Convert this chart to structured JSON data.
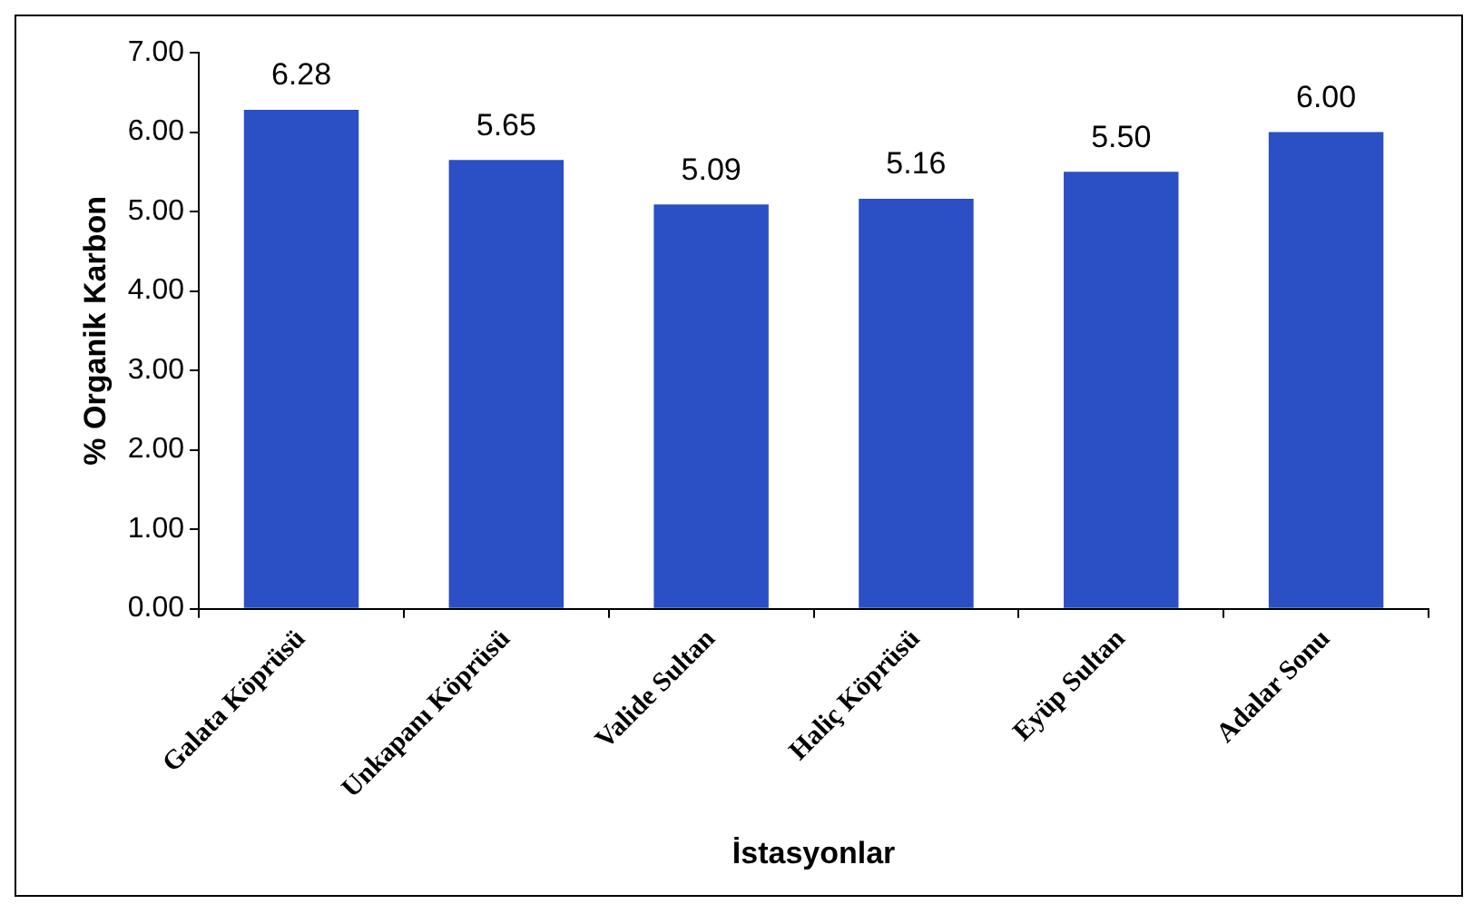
{
  "chart_data": {
    "type": "bar",
    "xlabel": "İstasyonlar",
    "ylabel": "% Organik Karbon",
    "categories": [
      "Galata Köprüsü",
      "Unkapanı Köprüsü",
      "Valide Sultan",
      "Haliç Köprüsü",
      "Eyüp Sultan",
      "Adalar Sonu"
    ],
    "values": [
      6.28,
      5.65,
      5.09,
      5.16,
      5.5,
      6.0
    ],
    "value_labels": [
      "6.28",
      "5.65",
      "5.09",
      "5.16",
      "5.50",
      "6.00"
    ],
    "color": "#2b4fc4",
    "ylim": [
      0,
      7
    ],
    "yticks": [
      {
        "value": 0,
        "label": "0.00"
      },
      {
        "value": 1,
        "label": "1.00"
      },
      {
        "value": 2,
        "label": "2.00"
      },
      {
        "value": 3,
        "label": "3.00"
      },
      {
        "value": 4,
        "label": "4.00"
      },
      {
        "value": 5,
        "label": "5.00"
      },
      {
        "value": 6,
        "label": "6.00"
      },
      {
        "value": 7,
        "label": "7.00"
      }
    ],
    "grid": false,
    "legend": false
  }
}
